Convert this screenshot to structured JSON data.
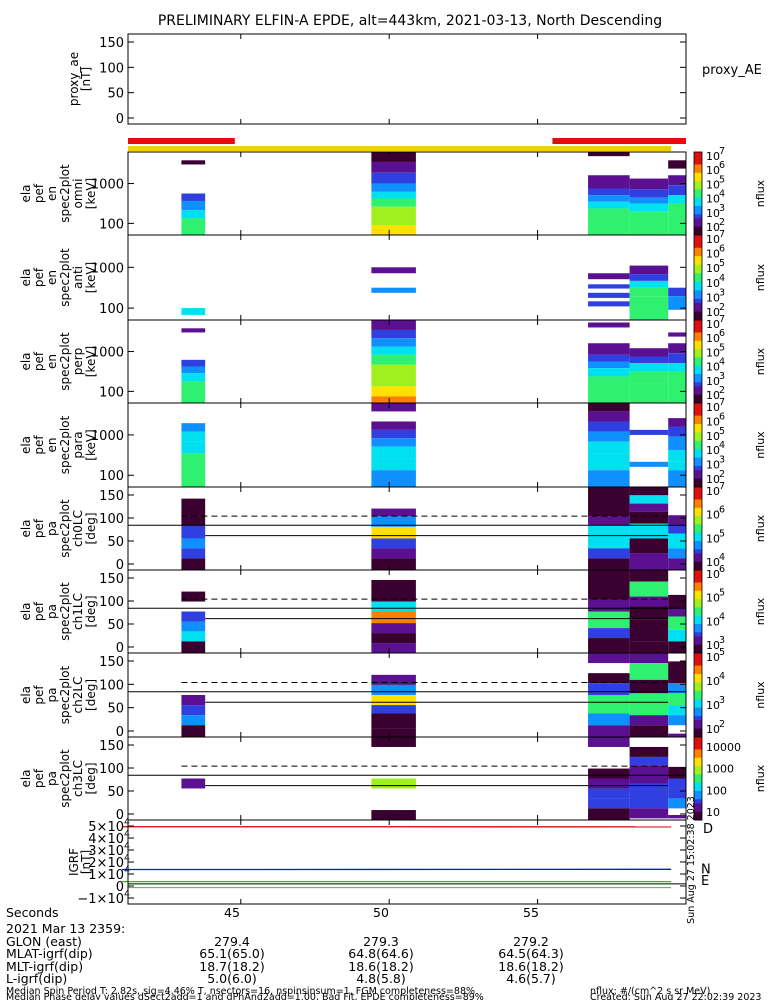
{
  "title": "PRELIMINARY ELFIN-A EPDE, alt=443km, 2021-03-13, North Descending",
  "colors": {
    "red_bar": "#e30d0d",
    "yellow_bar": "#f0d000",
    "igrf_red": "#dd0000",
    "igrf_blue": "#0022cc",
    "igrf_green": "#22cc00",
    "colormap": [
      "#3a0030",
      "#5a1090",
      "#3040e0",
      "#1090ff",
      "#00e0f0",
      "#30f070",
      "#a0f020",
      "#ffe000",
      "#ff8000",
      "#e01010"
    ]
  },
  "panels": [
    {
      "label": [
        "proxy_ae",
        "[nT]"
      ],
      "side_label": "proxy_AE",
      "yticks": [
        "150",
        "100",
        "50",
        "0"
      ]
    },
    {
      "label": [
        "ela",
        "pef",
        "en",
        "spec2plot",
        "omni",
        "[keV]"
      ],
      "yticks": [
        "1000",
        "100"
      ],
      "cbar": [
        "10",
        "7",
        "10",
        "6",
        "10",
        "5",
        "10",
        "4",
        "10",
        "3",
        "10",
        "2"
      ],
      "cbar_title": "nflux"
    },
    {
      "label": [
        "ela",
        "pef",
        "en",
        "spec2plot",
        "anti",
        "[keV]"
      ],
      "yticks": [
        "1000",
        "100"
      ],
      "cbar": [
        "10",
        "7",
        "10",
        "6",
        "10",
        "5",
        "10",
        "4",
        "10",
        "3",
        "10",
        "2"
      ],
      "cbar_title": "nflux"
    },
    {
      "label": [
        "ela",
        "pef",
        "en",
        "spec2plot",
        "perp",
        "[keV]"
      ],
      "yticks": [
        "1000",
        "100"
      ],
      "cbar": [
        "10",
        "7",
        "10",
        "6",
        "10",
        "5",
        "10",
        "4",
        "10",
        "3",
        "10",
        "2"
      ],
      "cbar_title": "nflux"
    },
    {
      "label": [
        "ela",
        "pef",
        "en",
        "spec2plot",
        "para",
        "[keV]"
      ],
      "yticks": [
        "1000",
        "100"
      ],
      "cbar": [
        "10",
        "7",
        "10",
        "6",
        "10",
        "5",
        "10",
        "4",
        "10",
        "3",
        "10",
        "2"
      ],
      "cbar_title": "nflux"
    },
    {
      "label": [
        "ela",
        "pef",
        "pa",
        "spec2plot",
        "ch0LC",
        "[deg]"
      ],
      "yticks": [
        "150",
        "100",
        "50",
        "0"
      ],
      "cbar": [
        "10",
        "7",
        "10",
        "6",
        "10",
        "5",
        "10",
        "4"
      ],
      "cbar_title": "nflux"
    },
    {
      "label": [
        "ela",
        "pef",
        "pa",
        "spec2plot",
        "ch1LC",
        "[deg]"
      ],
      "yticks": [
        "150",
        "100",
        "50",
        "0"
      ],
      "cbar": [
        "10",
        "6",
        "10",
        "5",
        "10",
        "4",
        "10",
        "3"
      ],
      "cbar_title": "nflux"
    },
    {
      "label": [
        "ela",
        "pef",
        "pa",
        "spec2plot",
        "ch2LC",
        "[deg]"
      ],
      "yticks": [
        "150",
        "100",
        "50",
        "0"
      ],
      "cbar": [
        "10",
        "5",
        "10",
        "4",
        "10",
        "3",
        "10",
        "2"
      ],
      "cbar_title": "nflux"
    },
    {
      "label": [
        "ela",
        "pef",
        "pa",
        "spec2plot",
        "ch3LC",
        "[deg]"
      ],
      "yticks": [
        "150",
        "100",
        "50",
        "0"
      ],
      "cbar": [
        "10000",
        "1000",
        "100",
        "10"
      ],
      "cbar_title": "nflux"
    },
    {
      "label": [
        "IGRF",
        "[nT]"
      ],
      "yticks": [
        "5×10",
        "4×10",
        "3×10",
        "2×10",
        "1×10",
        "0",
        "−1×10"
      ],
      "ytick_exp": "4",
      "side": [
        "D",
        "N",
        "E"
      ]
    }
  ],
  "footer": {
    "rows": [
      {
        "label": "Seconds",
        "values": [
          "45",
          "50",
          "55"
        ]
      },
      {
        "label": "2021 Mar 13 2359:",
        "values": []
      },
      {
        "label": "GLON (east)",
        "values": [
          "279.4",
          "279.3",
          "279.2"
        ]
      },
      {
        "label": "MLAT-igrf(dip)",
        "values": [
          "65.1(65.0)",
          "64.8(64.6)",
          "64.5(64.3)"
        ]
      },
      {
        "label": "MLT-igrf(dip)",
        "values": [
          "18.7(18.2)",
          "18.6(18.2)",
          "18.6(18.2)"
        ]
      },
      {
        "label": "L-igrf(dip)",
        "values": [
          "5.0(6.0)",
          "4.8(5.8)",
          "4.6(5.7)"
        ]
      }
    ],
    "note1": "Median Spin Period T: 2.82s, sig=4.46% T, nsectors=16, nspinsinsum=1, FGM completeness=88%",
    "note2": "Median Phase delay values dSect2add=1 and dPhAng2add=1.00, Bad Fit, EPDE completeness=89%",
    "nflux_units": "nflux: #/(cm^2 s sr MeV)",
    "created": "Created: Sun Aug 27 22:02:39 2023",
    "side_stamp": "Sun Aug 27 15:02:38 2023"
  },
  "chart_data": [
    {
      "type": "line",
      "title": "proxy_AE",
      "ylabel": "proxy_ae [nT]",
      "ylim": [
        0,
        160
      ],
      "series": []
    },
    {
      "type": "heatmap",
      "ylabel": "ela pef en spec2plot omni [keV]",
      "x_seconds": [
        43.2,
        49.3,
        57.2,
        58.7,
        59.9
      ],
      "yscale": "log",
      "ylim": [
        60,
        6000
      ],
      "colorbar": "nflux",
      "clim": [
        100,
        10000000
      ]
    },
    {
      "type": "heatmap",
      "ylabel": "ela pef en spec2plot anti [keV]",
      "yscale": "log",
      "ylim": [
        60,
        6000
      ],
      "colorbar": "nflux",
      "clim": [
        100,
        10000000
      ]
    },
    {
      "type": "heatmap",
      "ylabel": "ela pef en spec2plot perp [keV]",
      "yscale": "log",
      "ylim": [
        60,
        6000
      ],
      "colorbar": "nflux",
      "clim": [
        100,
        10000000
      ]
    },
    {
      "type": "heatmap",
      "ylabel": "ela pef en spec2plot para [keV]",
      "yscale": "log",
      "ylim": [
        60,
        6000
      ],
      "colorbar": "nflux",
      "clim": [
        100,
        10000000
      ]
    },
    {
      "type": "heatmap",
      "ylabel": "ela pef pa spec2plot ch0LC [deg]",
      "ylim": [
        0,
        180
      ],
      "reference_lines_deg": [
        115,
        93,
        68
      ],
      "colorbar": "nflux",
      "clim": [
        1000,
        10000000
      ]
    },
    {
      "type": "heatmap",
      "ylabel": "ela pef pa spec2plot ch1LC [deg]",
      "ylim": [
        0,
        180
      ],
      "reference_lines_deg": [
        115,
        93,
        68
      ],
      "colorbar": "nflux",
      "clim": [
        100,
        1000000
      ]
    },
    {
      "type": "heatmap",
      "ylabel": "ela pef pa spec2plot ch2LC [deg]",
      "ylim": [
        0,
        180
      ],
      "reference_lines_deg": [
        115,
        93,
        68
      ],
      "colorbar": "nflux",
      "clim": [
        100,
        100000
      ]
    },
    {
      "type": "heatmap",
      "ylabel": "ela pef pa spec2plot ch3LC [deg]",
      "ylim": [
        0,
        180
      ],
      "reference_lines_deg": [
        115,
        93,
        68
      ],
      "colorbar": "nflux",
      "clim": [
        10,
        10000
      ]
    },
    {
      "type": "line",
      "ylabel": "IGRF [nT]",
      "ylim": [
        -15000,
        50000
      ],
      "series": [
        {
          "name": "D",
          "color": "#dd0000",
          "x": [
            41,
            59.5
          ],
          "y": [
            47600,
            47500
          ]
        },
        {
          "name": "N",
          "color": "#0022cc",
          "x": [
            41,
            59.5
          ],
          "y": [
            10000,
            10200
          ]
        },
        {
          "name": "E",
          "color": "#22cc00",
          "x": [
            41,
            59.5
          ],
          "y": [
            -600,
            -600
          ]
        }
      ]
    },
    {
      "type": "table",
      "xaxis": "Seconds",
      "xlim": [
        41.2,
        60.0
      ],
      "xticks": [
        45,
        50,
        55
      ]
    }
  ]
}
